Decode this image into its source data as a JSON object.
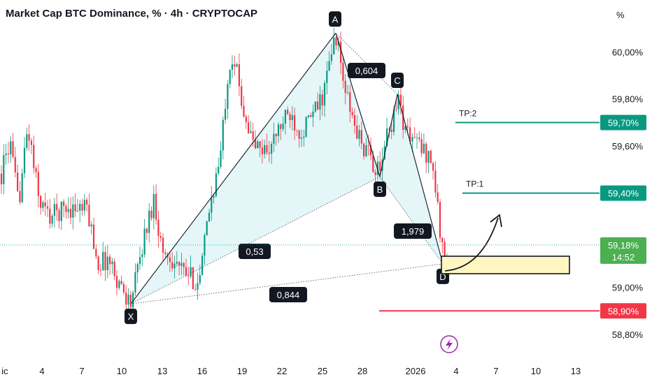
{
  "header": {
    "title": "Market Cap BTC Dominance, % · 4h · CRYPTOCAP"
  },
  "chart_data": {
    "type": "candlestick",
    "y_unit": "%",
    "ylim": [
      58.72,
      60.155
    ],
    "y_ticks": [
      {
        "value": 60.0,
        "label": "60,00%"
      },
      {
        "value": 59.8,
        "label": "59,80%"
      },
      {
        "value": 59.6,
        "label": "59,60%"
      },
      {
        "value": 59.0,
        "label": "59,00%"
      },
      {
        "value": 58.8,
        "label": "58,80%"
      }
    ],
    "x_ticks": [
      "ic",
      "4",
      "7",
      "10",
      "13",
      "16",
      "19",
      "22",
      "25",
      "28",
      "2026",
      "4",
      "7",
      "10",
      "13"
    ],
    "current_price": {
      "value": 59.18,
      "label": "59,18%",
      "countdown": "14:52"
    },
    "levels": [
      {
        "name": "TP:2",
        "value": 59.7,
        "label": "59,70%",
        "color": "#089981"
      },
      {
        "name": "TP:1",
        "value": 59.4,
        "label": "59,40%",
        "color": "#089981"
      },
      {
        "name": "",
        "value": 58.9,
        "label": "58,90%",
        "color": "#f23645"
      }
    ],
    "pattern": {
      "points": [
        {
          "label": "X",
          "value": 58.93
        },
        {
          "label": "A",
          "value": 60.08
        },
        {
          "label": "B",
          "value": 59.47
        },
        {
          "label": "C",
          "value": 59.82
        },
        {
          "label": "D",
          "value": 59.1
        }
      ],
      "ratios": [
        {
          "between": "XA-B",
          "label": "0,53"
        },
        {
          "between": "XA-D",
          "label": "0,844"
        },
        {
          "between": "AB-C",
          "label": "0,604"
        },
        {
          "between": "BC-D",
          "label": "1,979"
        }
      ]
    },
    "candle_colors": {
      "up": "#089981",
      "down": "#f23645"
    }
  }
}
